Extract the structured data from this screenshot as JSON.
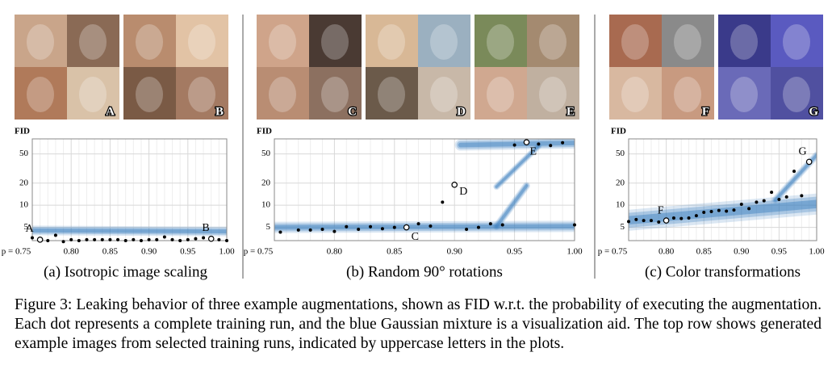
{
  "figure": {
    "caption": "Figure 3: Leaking behavior of three example augmentations, shown as FID w.r.t. the probability of executing the augmentation. Each dot represents a complete training run, and the blue Gaussian mixture is a visualization aid. The top row shows generated example images from selected training runs, indicated by uppercase letters in the plots.",
    "image_labels": [
      "A",
      "B",
      "C",
      "D",
      "E",
      "F",
      "G"
    ]
  },
  "chart_data": [
    {
      "type": "scatter",
      "caption": "(a) Isotropic image scaling",
      "y_label": "FID",
      "log_y": true,
      "grid": true,
      "color": "#000000",
      "x": [
        0.75,
        0.76,
        0.77,
        0.78,
        0.79,
        0.8,
        0.81,
        0.82,
        0.83,
        0.84,
        0.85,
        0.86,
        0.87,
        0.88,
        0.89,
        0.9,
        0.91,
        0.92,
        0.93,
        0.94,
        0.95,
        0.96,
        0.97,
        0.98,
        0.99,
        1.0
      ],
      "values": [
        3.6,
        3.4,
        3.3,
        3.9,
        3.2,
        3.4,
        3.3,
        3.4,
        3.4,
        3.4,
        3.4,
        3.4,
        3.3,
        3.4,
        3.3,
        3.4,
        3.4,
        3.7,
        3.4,
        3.3,
        3.4,
        3.5,
        3.6,
        3.5,
        3.4,
        3.3
      ],
      "point_labels": [
        null,
        "A",
        null,
        null,
        null,
        null,
        null,
        null,
        null,
        null,
        null,
        null,
        null,
        null,
        null,
        null,
        null,
        null,
        null,
        null,
        null,
        null,
        null,
        "B",
        null,
        null
      ],
      "xlim": [
        0.75,
        1.0
      ],
      "ylim": [
        3.3,
        80
      ],
      "xticks": [
        {
          "value": 0.75,
          "label": "p = 0.75"
        },
        {
          "value": 0.8,
          "label": "0.80"
        },
        {
          "value": 0.85,
          "label": "0.85"
        },
        {
          "value": 0.9,
          "label": "0.90"
        },
        {
          "value": 0.95,
          "label": "0.95"
        },
        {
          "value": 1.0,
          "label": "1.00"
        }
      ],
      "yticks": [
        5,
        10,
        20,
        50
      ]
    },
    {
      "type": "scatter",
      "caption": "(b) Random 90° rotations",
      "y_label": "FID",
      "log_y": true,
      "grid": true,
      "color": "#000000",
      "x": [
        0.755,
        0.77,
        0.78,
        0.79,
        0.8,
        0.81,
        0.82,
        0.83,
        0.84,
        0.85,
        0.86,
        0.87,
        0.88,
        0.89,
        0.9,
        0.91,
        0.92,
        0.93,
        0.94,
        0.95,
        0.96,
        0.97,
        0.98,
        0.99,
        1.0
      ],
      "values": [
        4.3,
        4.6,
        4.6,
        4.7,
        4.4,
        5.1,
        4.7,
        5.1,
        4.8,
        5.0,
        5.0,
        5.6,
        5.2,
        11,
        19,
        4.7,
        5.0,
        5.6,
        5.4,
        66,
        72,
        68,
        65,
        71,
        5.4
      ],
      "point_labels": [
        null,
        null,
        null,
        null,
        null,
        null,
        null,
        null,
        null,
        null,
        "C",
        null,
        null,
        null,
        "D",
        null,
        null,
        null,
        null,
        null,
        "E",
        null,
        null,
        null,
        null
      ],
      "xlim": [
        0.75,
        1.0
      ],
      "ylim": [
        3.3,
        80
      ],
      "xticks": [
        {
          "value": 0.75,
          "label": "p = 0.75"
        },
        {
          "value": 0.8,
          "label": "0.80"
        },
        {
          "value": 0.85,
          "label": "0.85"
        },
        {
          "value": 0.9,
          "label": "0.90"
        },
        {
          "value": 0.95,
          "label": "0.95"
        },
        {
          "value": 1.0,
          "label": "1.00"
        }
      ],
      "yticks": [
        5,
        10,
        20,
        50
      ]
    },
    {
      "type": "scatter",
      "caption": "(c) Color transformations",
      "y_label": "FID",
      "log_y": true,
      "grid": true,
      "color": "#000000",
      "x": [
        0.75,
        0.76,
        0.77,
        0.78,
        0.79,
        0.8,
        0.81,
        0.82,
        0.83,
        0.84,
        0.85,
        0.86,
        0.87,
        0.88,
        0.89,
        0.9,
        0.91,
        0.92,
        0.93,
        0.94,
        0.95,
        0.96,
        0.97,
        0.98,
        0.99
      ],
      "values": [
        6.0,
        6.4,
        6.2,
        6.2,
        5.9,
        6.2,
        6.7,
        6.6,
        6.7,
        7.2,
        8.0,
        8.2,
        8.5,
        8.3,
        8.6,
        10.3,
        9.0,
        11,
        11.5,
        15,
        12,
        13,
        29,
        13.5,
        39
      ],
      "point_labels": [
        null,
        null,
        null,
        null,
        null,
        "F",
        null,
        null,
        null,
        null,
        null,
        null,
        null,
        null,
        null,
        null,
        null,
        null,
        null,
        null,
        null,
        null,
        null,
        null,
        "G"
      ],
      "xlim": [
        0.75,
        1.0
      ],
      "ylim": [
        3.3,
        80
      ],
      "xticks": [
        {
          "value": 0.75,
          "label": "p = 0.75"
        },
        {
          "value": 0.8,
          "label": "0.80"
        },
        {
          "value": 0.85,
          "label": "0.85"
        },
        {
          "value": 0.9,
          "label": "0.90"
        },
        {
          "value": 0.95,
          "label": "0.95"
        },
        {
          "value": 1.0,
          "label": "1.00"
        }
      ],
      "yticks": [
        5,
        10,
        20,
        50
      ]
    }
  ]
}
